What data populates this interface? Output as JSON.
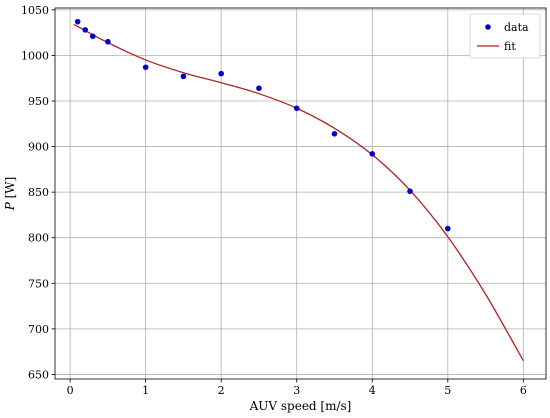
{
  "chart_data": {
    "type": "scatter",
    "xlabel": "AUV speed [m/s]",
    "ylabel": "P [W]",
    "xlim": [
      -0.2,
      6.3
    ],
    "ylim": [
      645,
      1052
    ],
    "xticks": [
      0,
      1,
      2,
      3,
      4,
      5,
      6
    ],
    "yticks": [
      650,
      700,
      750,
      800,
      850,
      900,
      950,
      1000,
      1050
    ],
    "grid": true,
    "legend": {
      "placement": "top-right",
      "entries": [
        "data",
        "fit"
      ]
    },
    "series": [
      {
        "name": "data",
        "kind": "scatter",
        "color": "#0000cc",
        "x": [
          0.1,
          0.2,
          0.3,
          0.5,
          1.0,
          1.5,
          2.0,
          2.5,
          3.0,
          3.5,
          4.0,
          4.5,
          5.0
        ],
        "y": [
          1037,
          1028,
          1021,
          1015,
          987,
          977,
          980,
          964,
          942,
          914,
          892,
          851,
          810
        ]
      },
      {
        "name": "fit",
        "kind": "line",
        "color": "#b22222",
        "x": [
          0.05,
          0.5,
          1.0,
          1.5,
          2.0,
          2.5,
          3.0,
          3.5,
          4.0,
          4.5,
          5.0,
          5.5,
          6.0
        ],
        "y": [
          1034,
          1014,
          995,
          981,
          970,
          958,
          942,
          920,
          891,
          852,
          801,
          738,
          665
        ]
      }
    ]
  }
}
